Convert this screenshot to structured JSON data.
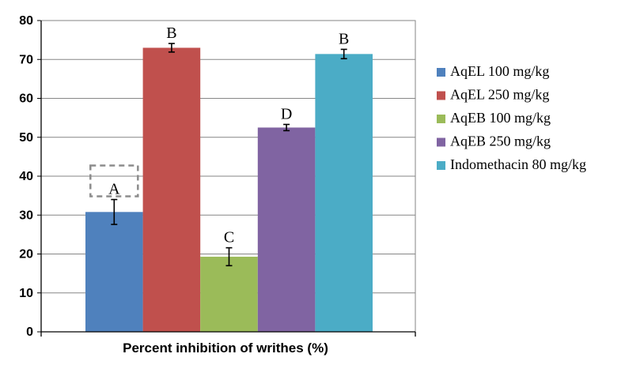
{
  "chart_data": {
    "type": "bar",
    "xlabel": "Percent inhibition of writhes (%)",
    "ylabel": "",
    "ylim": [
      0,
      80
    ],
    "yticks": [
      0,
      10,
      20,
      30,
      40,
      50,
      60,
      70,
      80
    ],
    "grid": true,
    "legend_position": "right",
    "series": [
      {
        "name": "AqEL  100 mg/kg",
        "value": 30.8,
        "error": 3.2,
        "label": "A",
        "color": "#4f81bd"
      },
      {
        "name": "AqEL 250 mg/kg",
        "value": 73.0,
        "error": 1.1,
        "label": "B",
        "color": "#c0504d"
      },
      {
        "name": "AqEB 100 mg/kg",
        "value": 19.3,
        "error": 2.3,
        "label": "C",
        "color": "#9bbb59"
      },
      {
        "name": "AqEB 250 mg/kg",
        "value": 52.5,
        "error": 0.8,
        "label": "D",
        "color": "#8064a2"
      },
      {
        "name": "Indomethacin 80 mg/kg",
        "value": 71.4,
        "error": 1.2,
        "label": "B",
        "color": "#4bacc6"
      }
    ]
  }
}
